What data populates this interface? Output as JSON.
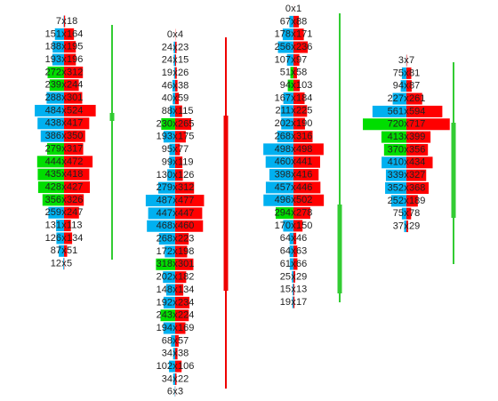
{
  "chart_data": {
    "type": "footprint",
    "separator": "x",
    "bid_color": "#00b0f0",
    "ask_color": "#ff0000",
    "highlight_color": "#00dd00",
    "candles": [
      {
        "color": "#33cc33",
        "green_rows": [
          4,
          5,
          10,
          11,
          12,
          13,
          14
        ],
        "rows": [
          [
            7,
            18
          ],
          [
            151,
            164
          ],
          [
            188,
            195
          ],
          [
            193,
            196
          ],
          [
            272,
            312
          ],
          [
            239,
            244
          ],
          [
            288,
            301
          ],
          [
            484,
            524
          ],
          [
            438,
            417
          ],
          [
            386,
            350
          ],
          [
            279,
            317
          ],
          [
            444,
            472
          ],
          [
            435,
            418
          ],
          [
            428,
            427
          ],
          [
            356,
            326
          ],
          [
            259,
            247
          ],
          [
            131,
            113
          ],
          [
            126,
            134
          ],
          [
            87,
            51
          ],
          [
            12,
            5
          ]
        ]
      },
      {
        "color": "#ee0000",
        "green_rows": [
          7,
          18,
          22
        ],
        "rows": [
          [
            0,
            4
          ],
          [
            24,
            23
          ],
          [
            24,
            15
          ],
          [
            19,
            26
          ],
          [
            46,
            38
          ],
          [
            40,
            59
          ],
          [
            88,
            115
          ],
          [
            230,
            265
          ],
          [
            193,
            175
          ],
          [
            95,
            77
          ],
          [
            99,
            119
          ],
          [
            130,
            126
          ],
          [
            279,
            312
          ],
          [
            487,
            477
          ],
          [
            447,
            447
          ],
          [
            468,
            460
          ],
          [
            268,
            223
          ],
          [
            172,
            198
          ],
          [
            318,
            301
          ],
          [
            202,
            182
          ],
          [
            148,
            134
          ],
          [
            192,
            234
          ],
          [
            243,
            224
          ],
          [
            194,
            169
          ],
          [
            68,
            57
          ],
          [
            34,
            38
          ],
          [
            102,
            106
          ],
          [
            34,
            22
          ],
          [
            6,
            3
          ]
        ]
      },
      {
        "color": "#33cc33",
        "green_rows": [
          5,
          6,
          16
        ],
        "rows": [
          [
            0,
            1
          ],
          [
            67,
            88
          ],
          [
            178,
            171
          ],
          [
            256,
            236
          ],
          [
            107,
            97
          ],
          [
            51,
            58
          ],
          [
            94,
            103
          ],
          [
            167,
            184
          ],
          [
            211,
            225
          ],
          [
            202,
            190
          ],
          [
            268,
            316
          ],
          [
            498,
            498
          ],
          [
            460,
            441
          ],
          [
            398,
            416
          ],
          [
            457,
            446
          ],
          [
            496,
            502
          ],
          [
            294,
            278
          ],
          [
            170,
            150
          ],
          [
            64,
            46
          ],
          [
            64,
            63
          ],
          [
            61,
            66
          ],
          [
            25,
            29
          ],
          [
            15,
            13
          ],
          [
            19,
            17
          ]
        ]
      },
      {
        "color": "#33cc33",
        "green_rows": [
          5,
          6,
          7
        ],
        "rows": [
          [
            3,
            7
          ],
          [
            75,
            81
          ],
          [
            94,
            87
          ],
          [
            227,
            261
          ],
          [
            561,
            594
          ],
          [
            720,
            717
          ],
          [
            413,
            399
          ],
          [
            370,
            356
          ],
          [
            410,
            434
          ],
          [
            339,
            327
          ],
          [
            352,
            368
          ],
          [
            252,
            189
          ],
          [
            75,
            78
          ],
          [
            37,
            29
          ]
        ]
      }
    ]
  }
}
